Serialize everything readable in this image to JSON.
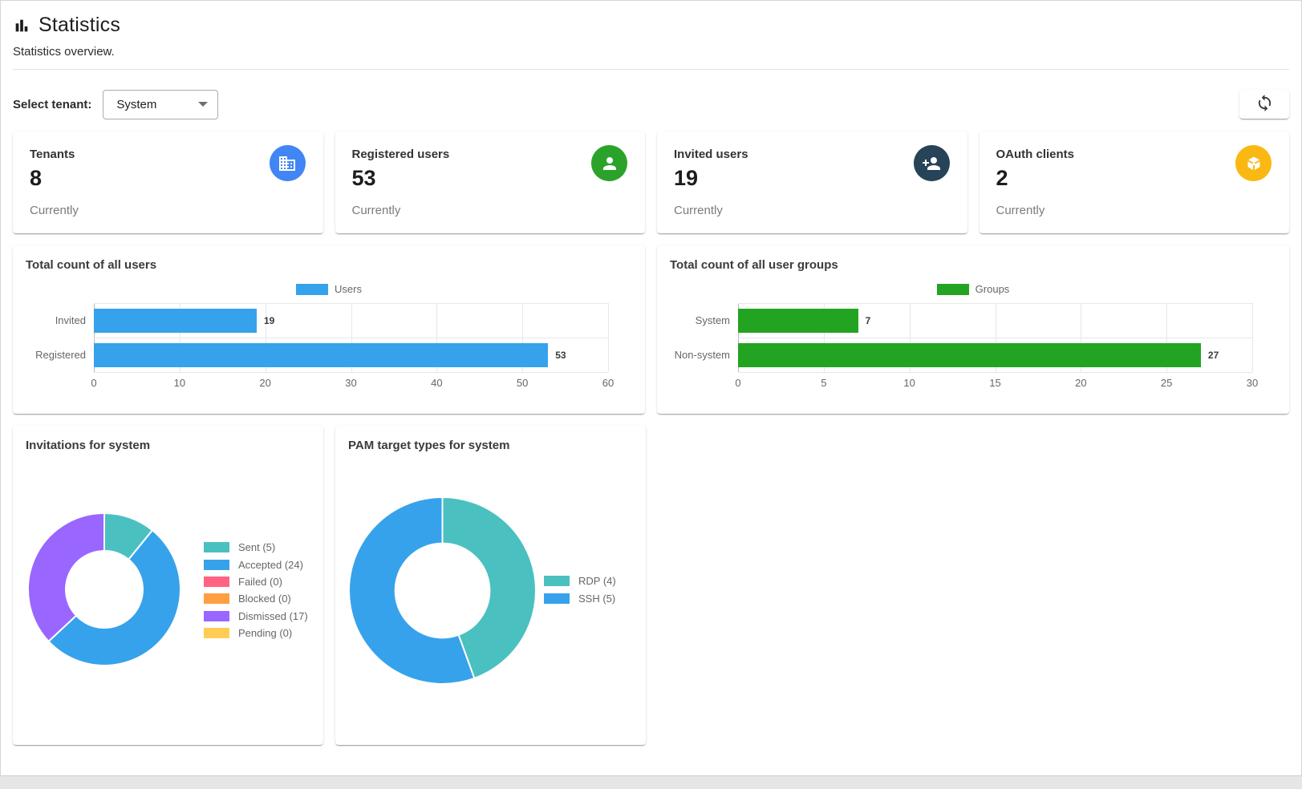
{
  "header": {
    "title": "Statistics",
    "subtitle": "Statistics overview.",
    "icon": "bar-chart-icon"
  },
  "toolbar": {
    "tenant_label": "Select tenant:",
    "tenant_value": "System",
    "refresh_icon": "sync-icon"
  },
  "stat_cards": [
    {
      "label": "Tenants",
      "value": "8",
      "caption": "Currently",
      "icon": "building-icon",
      "icon_bg": "#4285F4"
    },
    {
      "label": "Registered users",
      "value": "53",
      "caption": "Currently",
      "icon": "person-icon",
      "icon_bg": "#2BA32B"
    },
    {
      "label": "Invited users",
      "value": "19",
      "caption": "Currently",
      "icon": "person-add-icon",
      "icon_bg": "#274357"
    },
    {
      "label": "OAuth clients",
      "value": "2",
      "caption": "Currently",
      "icon": "token-icon",
      "icon_bg": "#F9B912"
    }
  ],
  "chart_data": [
    {
      "type": "bar",
      "orientation": "horizontal",
      "title": "Total count of all users",
      "legend": [
        {
          "name": "Users",
          "color": "#36A2EB"
        }
      ],
      "legend_position": "top-center",
      "categories": [
        "Invited",
        "Registered"
      ],
      "values": [
        19,
        53
      ],
      "bar_color": "#36A2EB",
      "xlim": [
        0,
        60
      ],
      "xticks": [
        0,
        10,
        20,
        30,
        40,
        50,
        60
      ],
      "grid": true
    },
    {
      "type": "bar",
      "orientation": "horizontal",
      "title": "Total count of all user groups",
      "legend": [
        {
          "name": "Groups",
          "color": "#22A422"
        }
      ],
      "legend_position": "top-center",
      "categories": [
        "System",
        "Non-system"
      ],
      "values": [
        7,
        27
      ],
      "bar_color": "#22A422",
      "xlim": [
        0,
        30
      ],
      "xticks": [
        0,
        5,
        10,
        15,
        20,
        25,
        30
      ],
      "grid": true
    },
    {
      "type": "donut",
      "title": "Invitations for system",
      "legend_position": "right",
      "segments": [
        {
          "label": "Sent",
          "value": 5,
          "display": "Sent (5)",
          "color": "#4BC0C0"
        },
        {
          "label": "Accepted",
          "value": 24,
          "display": "Accepted (24)",
          "color": "#36A2EB"
        },
        {
          "label": "Failed",
          "value": 0,
          "display": "Failed (0)",
          "color": "#FF6384"
        },
        {
          "label": "Blocked",
          "value": 0,
          "display": "Blocked (0)",
          "color": "#FF9F40"
        },
        {
          "label": "Dismissed",
          "value": 17,
          "display": "Dismissed (17)",
          "color": "#9966FF"
        },
        {
          "label": "Pending",
          "value": 0,
          "display": "Pending (0)",
          "color": "#FFCD56"
        }
      ]
    },
    {
      "type": "donut",
      "title": "PAM target types for system",
      "legend_position": "right",
      "segments": [
        {
          "label": "RDP",
          "value": 4,
          "display": "RDP (4)",
          "color": "#4BC0C0"
        },
        {
          "label": "SSH",
          "value": 5,
          "display": "SSH (5)",
          "color": "#36A2EB"
        }
      ]
    }
  ]
}
